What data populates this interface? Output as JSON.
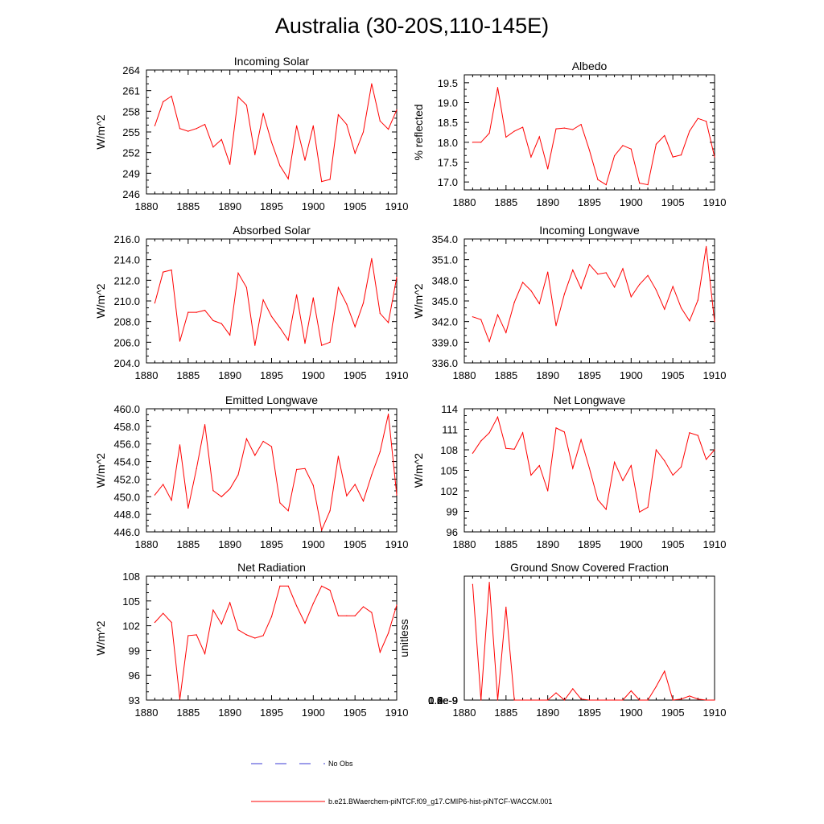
{
  "title": "Australia (30-20S,110-145E)",
  "legend": {
    "obs_label": "No Obs",
    "model_label": "b.e21.BWaerchem-piNTCF.f09_g17.CMIP6-hist-piNTCF-WACCM.001",
    "obs_color": "#3b3bd6",
    "model_color": "#ff0000"
  },
  "chart_data": [
    {
      "type": "line",
      "title": "Incoming Solar",
      "xlabel": "",
      "ylabel": "W/m^2",
      "xlim": [
        1880,
        1910
      ],
      "ylim": [
        246,
        264
      ],
      "xticks": [
        "1880",
        "1885",
        "1890",
        "1895",
        "1900",
        "1905",
        "1910"
      ],
      "yticks": [
        "246",
        "249",
        "252",
        "255",
        "258",
        "261",
        "264"
      ],
      "x": [
        1881,
        1882,
        1883,
        1884,
        1885,
        1886,
        1887,
        1888,
        1889,
        1890,
        1891,
        1892,
        1893,
        1894,
        1895,
        1896,
        1897,
        1898,
        1899,
        1900,
        1901,
        1902,
        1903,
        1904,
        1905,
        1906,
        1907,
        1908,
        1909,
        1910
      ],
      "series": [
        {
          "values": [
            255.9,
            259.4,
            260.2,
            255.5,
            255.1,
            255.5,
            256.1,
            252.8,
            253.9,
            250.3,
            260.1,
            258.9,
            251.7,
            257.7,
            253.5,
            250.1,
            248.2,
            255.9,
            250.9,
            255.9,
            247.8,
            248.1,
            257.5,
            256.1,
            251.9,
            255.0,
            262.0,
            256.6,
            255.4,
            258.2
          ]
        }
      ]
    },
    {
      "type": "line",
      "title": "Albedo",
      "xlabel": "",
      "ylabel": "% reflected",
      "xlim": [
        1880,
        1910
      ],
      "ylim": [
        16.8,
        19.7
      ],
      "xticks": [
        "1880",
        "1885",
        "1890",
        "1895",
        "1900",
        "1905",
        "1910"
      ],
      "yticks": [
        "17.0",
        "17.5",
        "18.0",
        "18.5",
        "19.0",
        "19.5"
      ],
      "x": [
        1881,
        1882,
        1883,
        1884,
        1885,
        1886,
        1887,
        1888,
        1889,
        1890,
        1891,
        1892,
        1893,
        1894,
        1895,
        1896,
        1897,
        1898,
        1899,
        1900,
        1901,
        1902,
        1903,
        1904,
        1905,
        1906,
        1907,
        1908,
        1909,
        1910
      ],
      "series": [
        {
          "values": [
            18.0,
            18.0,
            18.23,
            19.38,
            18.13,
            18.28,
            18.38,
            17.63,
            18.14,
            17.33,
            18.34,
            18.36,
            18.32,
            18.45,
            17.8,
            17.06,
            16.93,
            17.66,
            17.92,
            17.83,
            16.97,
            16.93,
            17.95,
            18.17,
            17.63,
            17.68,
            18.28,
            18.6,
            18.53,
            17.63
          ]
        }
      ]
    },
    {
      "type": "line",
      "title": "Absorbed Solar",
      "xlabel": "",
      "ylabel": "W/m^2",
      "xlim": [
        1880,
        1910
      ],
      "ylim": [
        204,
        216
      ],
      "xticks": [
        "1880",
        "1885",
        "1890",
        "1895",
        "1900",
        "1905",
        "1910"
      ],
      "yticks": [
        "204.0",
        "206.0",
        "208.0",
        "210.0",
        "212.0",
        "214.0",
        "216.0"
      ],
      "x": [
        1881,
        1882,
        1883,
        1884,
        1885,
        1886,
        1887,
        1888,
        1889,
        1890,
        1891,
        1892,
        1893,
        1894,
        1895,
        1896,
        1897,
        1898,
        1899,
        1900,
        1901,
        1902,
        1903,
        1904,
        1905,
        1906,
        1907,
        1908,
        1909,
        1910
      ],
      "series": [
        {
          "values": [
            209.8,
            212.8,
            213.0,
            206.1,
            208.9,
            208.9,
            209.1,
            208.1,
            207.8,
            206.7,
            212.7,
            211.3,
            205.7,
            210.1,
            208.5,
            207.4,
            206.2,
            210.6,
            205.9,
            210.3,
            205.7,
            206.0,
            211.3,
            209.7,
            207.5,
            209.8,
            214.1,
            208.8,
            207.9,
            212.3
          ]
        }
      ]
    },
    {
      "type": "line",
      "title": "Incoming Longwave",
      "xlabel": "",
      "ylabel": "W/m^2",
      "xlim": [
        1880,
        1910
      ],
      "ylim": [
        336,
        354
      ],
      "xticks": [
        "1880",
        "1885",
        "1890",
        "1895",
        "1900",
        "1905",
        "1910"
      ],
      "yticks": [
        "336.0",
        "339.0",
        "342.0",
        "345.0",
        "348.0",
        "351.0",
        "354.0"
      ],
      "x": [
        1881,
        1882,
        1883,
        1884,
        1885,
        1886,
        1887,
        1888,
        1889,
        1890,
        1891,
        1892,
        1893,
        1894,
        1895,
        1896,
        1897,
        1898,
        1899,
        1900,
        1901,
        1902,
        1903,
        1904,
        1905,
        1906,
        1907,
        1908,
        1909,
        1910
      ],
      "series": [
        {
          "values": [
            342.7,
            342.3,
            339.1,
            343.0,
            340.4,
            344.8,
            347.7,
            346.5,
            344.6,
            349.2,
            341.4,
            346.0,
            349.5,
            346.8,
            350.3,
            348.9,
            349.1,
            347.0,
            349.7,
            345.6,
            347.4,
            348.7,
            346.6,
            343.8,
            347.1,
            344.0,
            342.1,
            345.1,
            352.9,
            342.0
          ]
        }
      ]
    },
    {
      "type": "line",
      "title": "Emitted Longwave",
      "xlabel": "",
      "ylabel": "W/m^2",
      "xlim": [
        1880,
        1910
      ],
      "ylim": [
        446,
        460
      ],
      "xticks": [
        "1880",
        "1885",
        "1890",
        "1895",
        "1900",
        "1905",
        "1910"
      ],
      "yticks": [
        "446.0",
        "448.0",
        "450.0",
        "452.0",
        "454.0",
        "456.0",
        "458.0",
        "460.0"
      ],
      "x": [
        1881,
        1882,
        1883,
        1884,
        1885,
        1886,
        1887,
        1888,
        1889,
        1890,
        1891,
        1892,
        1893,
        1894,
        1895,
        1896,
        1897,
        1898,
        1899,
        1900,
        1901,
        1902,
        1903,
        1904,
        1905,
        1906,
        1907,
        1908,
        1909,
        1910
      ],
      "series": [
        {
          "values": [
            450.2,
            451.4,
            449.6,
            455.9,
            448.7,
            453.2,
            458.2,
            450.7,
            450.0,
            450.9,
            452.5,
            456.6,
            454.7,
            456.3,
            455.7,
            449.3,
            448.4,
            453.1,
            453.2,
            451.3,
            446.2,
            448.4,
            454.6,
            450.1,
            451.4,
            449.5,
            452.5,
            455.1,
            459.4,
            450.2
          ]
        }
      ]
    },
    {
      "type": "line",
      "title": "Net Longwave",
      "xlabel": "",
      "ylabel": "W/m^2",
      "xlim": [
        1880,
        1910
      ],
      "ylim": [
        96,
        114
      ],
      "xticks": [
        "1880",
        "1885",
        "1890",
        "1895",
        "1900",
        "1905",
        "1910"
      ],
      "yticks": [
        "96",
        "99",
        "102",
        "105",
        "108",
        "111",
        "114"
      ],
      "x": [
        1881,
        1882,
        1883,
        1884,
        1885,
        1886,
        1887,
        1888,
        1889,
        1890,
        1891,
        1892,
        1893,
        1894,
        1895,
        1896,
        1897,
        1898,
        1899,
        1900,
        1901,
        1902,
        1903,
        1904,
        1905,
        1906,
        1907,
        1908,
        1909,
        1910
      ],
      "series": [
        {
          "values": [
            107.5,
            109.3,
            110.5,
            112.8,
            108.2,
            108.1,
            110.5,
            104.3,
            105.7,
            102.0,
            111.2,
            110.6,
            105.3,
            109.5,
            105.3,
            100.7,
            99.3,
            106.2,
            103.5,
            105.7,
            98.9,
            99.6,
            108.0,
            106.4,
            104.3,
            105.5,
            110.5,
            110.1,
            106.6,
            108.0
          ]
        }
      ]
    },
    {
      "type": "line",
      "title": "Net Radiation",
      "xlabel": "",
      "ylabel": "W/m^2",
      "xlim": [
        1880,
        1910
      ],
      "ylim": [
        93,
        108
      ],
      "xticks": [
        "1880",
        "1885",
        "1890",
        "1895",
        "1900",
        "1905",
        "1910"
      ],
      "yticks": [
        "93",
        "96",
        "99",
        "102",
        "105",
        "108"
      ],
      "x": [
        1881,
        1882,
        1883,
        1884,
        1885,
        1886,
        1887,
        1888,
        1889,
        1890,
        1891,
        1892,
        1893,
        1894,
        1895,
        1896,
        1897,
        1898,
        1899,
        1900,
        1901,
        1902,
        1903,
        1904,
        1905,
        1906,
        1907,
        1908,
        1909,
        1910
      ],
      "series": [
        {
          "values": [
            102.4,
            103.5,
            102.4,
            93.1,
            100.8,
            100.9,
            98.6,
            103.9,
            102.2,
            104.8,
            101.5,
            100.9,
            100.5,
            100.8,
            103.1,
            106.8,
            106.8,
            104.4,
            102.3,
            104.7,
            106.8,
            106.3,
            103.2,
            103.2,
            103.2,
            104.3,
            103.6,
            98.8,
            101.1,
            104.5
          ]
        }
      ]
    },
    {
      "type": "line",
      "title": "Ground Snow Covered Fraction",
      "xlabel": "",
      "ylabel": "unitless",
      "xlim": [
        1880,
        1910
      ],
      "ylim": [
        0,
        1.2e-09
      ],
      "xticks": [
        "1880",
        "1885",
        "1890",
        "1895",
        "1900",
        "1905",
        "1910"
      ],
      "yticks": [
        "0.0e-9",
        "0.2e-9",
        "0.4e-9",
        "0.6e-9",
        "0.8e-9",
        "1.0e-9",
        "1.2e-9"
      ],
      "x": [
        1881,
        1882,
        1883,
        1884,
        1885,
        1886,
        1887,
        1888,
        1889,
        1890,
        1891,
        1892,
        1893,
        1894,
        1895,
        1896,
        1897,
        1898,
        1899,
        1900,
        1901,
        1902,
        1903,
        1904,
        1905,
        1906,
        1907,
        1908,
        1909,
        1910
      ],
      "series": [
        {
          "values": [
            1.12e-09,
            0,
            1.14e-09,
            0,
            9e-10,
            0,
            0,
            0,
            0,
            0,
            7e-11,
            0,
            1.1e-10,
            1e-11,
            0,
            0,
            0,
            0,
            0,
            9e-11,
            0,
            0,
            1.3e-10,
            2.8e-10,
            0,
            1e-11,
            4e-11,
            1e-11,
            0,
            0
          ]
        }
      ]
    }
  ]
}
